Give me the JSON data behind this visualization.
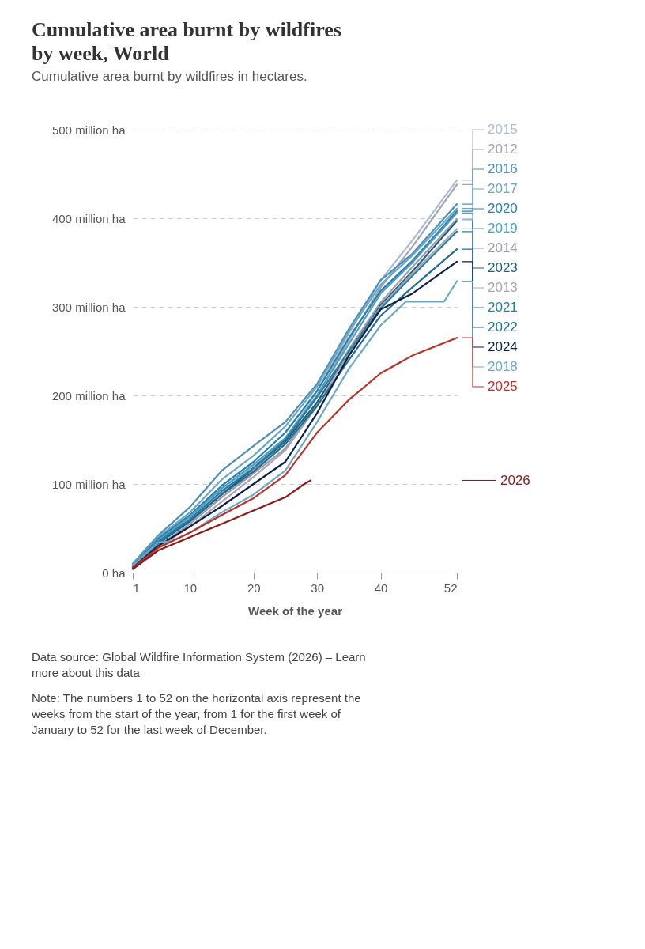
{
  "chart_data": {
    "type": "line",
    "title": "Cumulative area burnt by wildfires by week, World",
    "subtitle": "Cumulative area burnt by wildfires in hectares.",
    "xlabel": "Week of the year",
    "x": [
      1,
      5,
      10,
      15,
      20,
      25,
      30,
      35,
      40,
      45,
      52
    ],
    "xlim": [
      1,
      52
    ],
    "xticks": [
      1,
      10,
      20,
      30,
      40,
      52
    ],
    "ylim": [
      0,
      500
    ],
    "yticks": [
      {
        "value": 0,
        "label": "0 ha"
      },
      {
        "value": 100,
        "label": "100 million ha"
      },
      {
        "value": 200,
        "label": "200 million ha"
      },
      {
        "value": 300,
        "label": "300 million ha"
      },
      {
        "value": 400,
        "label": "400 million ha"
      },
      {
        "value": 500,
        "label": "500 million ha"
      }
    ],
    "grid": "y",
    "legend": "right",
    "marker": "none",
    "line_style": "solid",
    "series": [
      {
        "name": "2015",
        "color": "#a9bdd3",
        "values": [
          8,
          35,
          62,
          95,
          120,
          150,
          205,
          270,
          330,
          375,
          443
        ]
      },
      {
        "name": "2012",
        "color": "#a3a1b6",
        "values": [
          6,
          32,
          60,
          90,
          115,
          148,
          200,
          262,
          322,
          368,
          438
        ]
      },
      {
        "name": "2016",
        "color": "#4f8fb5",
        "values": [
          10,
          42,
          74,
          115,
          143,
          170,
          213,
          275,
          330,
          360,
          416
        ]
      },
      {
        "name": "2017",
        "color": "#6aa6c8",
        "values": [
          9,
          40,
          68,
          105,
          132,
          165,
          210,
          272,
          325,
          358,
          411
        ]
      },
      {
        "name": "2020",
        "color": "#2a7ea8",
        "values": [
          8,
          38,
          65,
          98,
          125,
          158,
          205,
          265,
          318,
          352,
          408
        ]
      },
      {
        "name": "2019",
        "color": "#4aa0c8",
        "values": [
          8,
          36,
          63,
          95,
          122,
          152,
          200,
          258,
          315,
          350,
          406
        ]
      },
      {
        "name": "2014",
        "color": "#9d9bae",
        "values": [
          7,
          30,
          55,
          85,
          112,
          140,
          192,
          252,
          305,
          345,
          399
        ]
      },
      {
        "name": "2023",
        "color": "#1c5f7e",
        "values": [
          7,
          33,
          58,
          88,
          118,
          148,
          192,
          248,
          302,
          340,
          397
        ]
      },
      {
        "name": "2013",
        "color": "#a6a5b4",
        "values": [
          6,
          28,
          52,
          80,
          108,
          138,
          188,
          248,
          300,
          338,
          388
        ]
      },
      {
        "name": "2021",
        "color": "#2b7d9e",
        "values": [
          8,
          35,
          60,
          92,
          118,
          150,
          198,
          250,
          298,
          335,
          385
        ]
      },
      {
        "name": "2022",
        "color": "#1f6f92",
        "values": [
          7,
          33,
          58,
          88,
          114,
          145,
          188,
          240,
          290,
          322,
          365
        ]
      },
      {
        "name": "2024",
        "color": "#0e1f47",
        "values": [
          5,
          30,
          52,
          75,
          100,
          125,
          180,
          245,
          297,
          315,
          351
        ]
      },
      {
        "name": "2018",
        "color": "#6aa8c6",
        "x": [
          1,
          5,
          6,
          7,
          10,
          15,
          20,
          25,
          30,
          35,
          40,
          44,
          50,
          52
        ],
        "values": [
          8,
          34,
          35,
          35,
          45,
          68,
          88,
          115,
          170,
          230,
          279,
          306,
          306,
          329
        ]
      },
      {
        "name": "2025",
        "color": "#b8322a",
        "values": [
          5,
          28,
          45,
          65,
          84,
          110,
          158,
          195,
          225,
          245,
          265
        ]
      },
      {
        "name": "2026",
        "color": "#8b1a1a",
        "x": [
          1,
          5,
          10,
          15,
          20,
          25,
          28,
          29
        ],
        "values": [
          4,
          25,
          40,
          55,
          70,
          85,
          100,
          104
        ]
      }
    ],
    "annotations": [
      "Data source: Global Wildfire Information System (2026) – Learn more about this data",
      "Note: The numbers 1 to 52 on the horizontal axis represent the weeks from the start of the year, from 1 for the first week of January to 52 for the last week of December."
    ]
  }
}
